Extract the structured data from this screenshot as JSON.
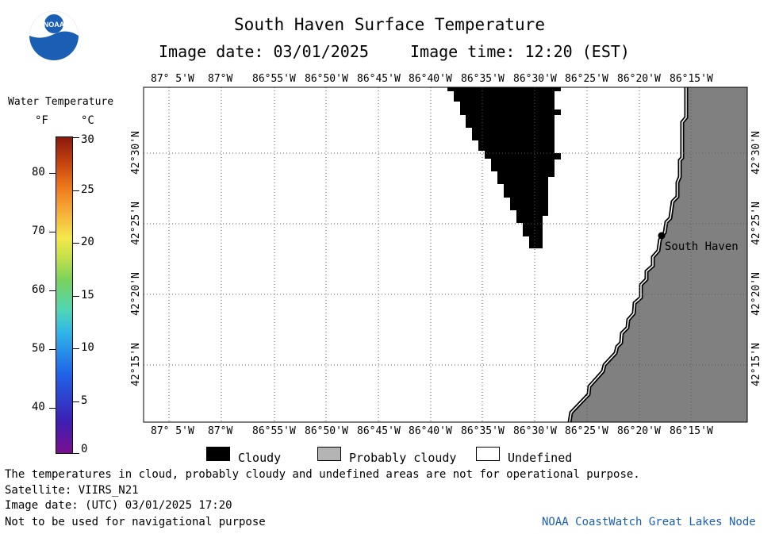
{
  "header": {
    "title": "South Haven Surface Temperature",
    "image_date": "Image date: 03/01/2025",
    "image_time": "Image time: 12:20 (EST)"
  },
  "logo": {
    "text": "NOAA"
  },
  "colorbar": {
    "title": "Water Temperature",
    "unit_f": "°F",
    "unit_c": "°C",
    "f_ticks": [
      "80",
      "70",
      "60",
      "50",
      "40"
    ],
    "c_ticks": [
      "30",
      "25",
      "20",
      "15",
      "10",
      "5",
      "0"
    ]
  },
  "map": {
    "lon_labels": [
      "87° 5'W",
      "87°W",
      "86°55'W",
      "86°50'W",
      "86°45'W",
      "86°40'W",
      "86°35'W",
      "86°30'W",
      "86°25'W",
      "86°20'W",
      "86°15'W"
    ],
    "lat_labels": [
      "42°30'N",
      "42°25'N",
      "42°20'N",
      "42°15'N"
    ],
    "city": "South Haven",
    "colors": {
      "cloudy": "#000000",
      "land": "#808080",
      "water_undefined": "#ffffff"
    }
  },
  "legend": {
    "cloudy": "Cloudy",
    "probably_cloudy": "Probably cloudy",
    "undefined": "Undefined"
  },
  "footer": {
    "disclaimer": "The temperatures in cloud, probably cloudy and undefined areas are not for operational purpose.",
    "satellite": "Satellite: VIIRS_N21",
    "utc_date": "Image date: (UTC) 03/01/2025  17:20",
    "nav_warning": "Not to be used for navigational purpose",
    "credit": "NOAA CoastWatch Great Lakes Node"
  }
}
